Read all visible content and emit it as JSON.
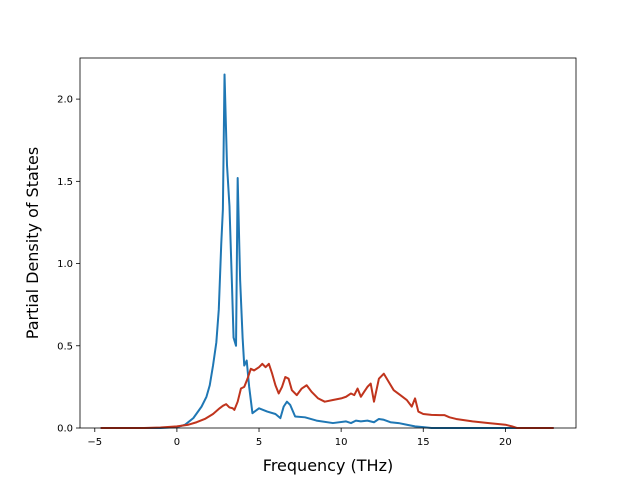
{
  "chart_data": {
    "type": "line",
    "title": "",
    "xlabel": "Frequency (THz)",
    "ylabel": "Partial Density of States",
    "xlim": [
      -5.9,
      24.3
    ],
    "ylim": [
      0,
      2.25
    ],
    "xticks": [
      -5,
      0,
      5,
      10,
      15,
      20
    ],
    "xtick_labels": [
      "−5",
      "0",
      "5",
      "10",
      "15",
      "20"
    ],
    "yticks": [
      0.0,
      0.5,
      1.0,
      1.5,
      2.0
    ],
    "ytick_labels": [
      "0.0",
      "0.5",
      "1.0",
      "1.5",
      "2.0"
    ],
    "grid": false,
    "legend": "none",
    "series": [
      {
        "color": "#1f77b4",
        "x": [
          -4.6,
          -1.0,
          0.0,
          0.5,
          1.0,
          1.5,
          1.8,
          2.0,
          2.2,
          2.4,
          2.55,
          2.7,
          2.8,
          2.9,
          3.05,
          3.2,
          3.35,
          3.45,
          3.6,
          3.7,
          3.85,
          4.0,
          4.1,
          4.25,
          4.4,
          4.6,
          5.0,
          5.5,
          6.0,
          6.3,
          6.5,
          6.7,
          6.9,
          7.2,
          7.8,
          8.5,
          9.5,
          10.3,
          10.6,
          10.9,
          11.2,
          11.6,
          12.0,
          12.3,
          12.6,
          13.0,
          13.5,
          14.0,
          14.5,
          15.0,
          15.5,
          16.0,
          16.5,
          17.0,
          18.0,
          20.0,
          22.9
        ],
        "y": [
          0.0,
          0.0,
          0.005,
          0.02,
          0.06,
          0.13,
          0.19,
          0.26,
          0.38,
          0.52,
          0.72,
          1.12,
          1.33,
          2.15,
          1.6,
          1.35,
          0.88,
          0.55,
          0.5,
          1.52,
          0.9,
          0.55,
          0.38,
          0.41,
          0.25,
          0.09,
          0.12,
          0.1,
          0.085,
          0.06,
          0.13,
          0.16,
          0.14,
          0.07,
          0.065,
          0.045,
          0.03,
          0.04,
          0.03,
          0.045,
          0.04,
          0.045,
          0.035,
          0.055,
          0.05,
          0.035,
          0.03,
          0.02,
          0.01,
          0.005,
          0.0,
          0.0,
          0.0,
          0.0,
          0.0,
          0.0,
          0.0
        ]
      },
      {
        "color": "#c0341d",
        "x": [
          -4.6,
          -2.0,
          -1.0,
          0.0,
          0.7,
          1.2,
          1.7,
          2.2,
          2.6,
          2.8,
          3.0,
          3.2,
          3.4,
          3.5,
          3.7,
          3.9,
          4.1,
          4.3,
          4.5,
          4.7,
          5.0,
          5.2,
          5.4,
          5.6,
          5.8,
          6.0,
          6.2,
          6.4,
          6.6,
          6.8,
          7.0,
          7.3,
          7.6,
          7.9,
          8.2,
          8.6,
          9.0,
          9.5,
          10.0,
          10.3,
          10.6,
          10.8,
          11.0,
          11.2,
          11.4,
          11.6,
          11.8,
          12.0,
          12.3,
          12.6,
          12.9,
          13.2,
          13.6,
          14.0,
          14.3,
          14.5,
          14.7,
          15.0,
          15.5,
          16.0,
          16.3,
          16.6,
          17.0,
          18.0,
          19.0,
          20.0,
          20.4,
          20.7,
          21.5,
          22.9
        ],
        "y": [
          0.0,
          0.0,
          0.003,
          0.01,
          0.02,
          0.035,
          0.055,
          0.085,
          0.12,
          0.135,
          0.145,
          0.125,
          0.12,
          0.11,
          0.16,
          0.24,
          0.25,
          0.3,
          0.36,
          0.35,
          0.37,
          0.39,
          0.37,
          0.39,
          0.33,
          0.26,
          0.21,
          0.25,
          0.31,
          0.3,
          0.23,
          0.2,
          0.24,
          0.26,
          0.22,
          0.18,
          0.16,
          0.17,
          0.18,
          0.19,
          0.21,
          0.2,
          0.24,
          0.19,
          0.22,
          0.25,
          0.27,
          0.16,
          0.3,
          0.33,
          0.28,
          0.23,
          0.2,
          0.17,
          0.13,
          0.18,
          0.1,
          0.085,
          0.08,
          0.078,
          0.078,
          0.065,
          0.055,
          0.04,
          0.03,
          0.02,
          0.01,
          0.0,
          0.0,
          0.0
        ]
      }
    ]
  }
}
